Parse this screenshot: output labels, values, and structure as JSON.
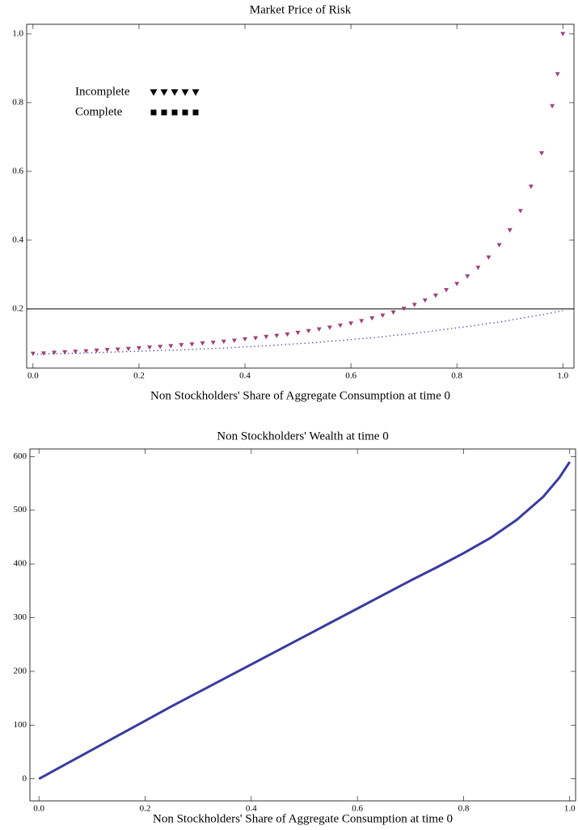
{
  "chart_data": [
    {
      "type": "line",
      "title": "Market Price of Risk",
      "x_label": "Non Stockholders' Share of Aggregate Consumption at time 0",
      "x": [
        0,
        0.02,
        0.04,
        0.06,
        0.08,
        0.1,
        0.12,
        0.14,
        0.16,
        0.18,
        0.2,
        0.22,
        0.24,
        0.26,
        0.28,
        0.3,
        0.32,
        0.34,
        0.36,
        0.38,
        0.4,
        0.42,
        0.44,
        0.46,
        0.48,
        0.5,
        0.52,
        0.54,
        0.56,
        0.58,
        0.6,
        0.62,
        0.64,
        0.66,
        0.68,
        0.7,
        0.72,
        0.74,
        0.76,
        0.78,
        0.8,
        0.82,
        0.84,
        0.86,
        0.88,
        0.9,
        0.92,
        0.94,
        0.96,
        0.98,
        0.99,
        1
      ],
      "series": [
        {
          "name": "Incomplete",
          "color": "#a0407a",
          "marker": "triangle",
          "values": [
            0.07,
            0.071,
            0.073,
            0.074,
            0.076,
            0.077,
            0.079,
            0.081,
            0.082,
            0.084,
            0.086,
            0.088,
            0.09,
            0.092,
            0.095,
            0.097,
            0.1,
            0.102,
            0.105,
            0.108,
            0.112,
            0.115,
            0.119,
            0.122,
            0.126,
            0.131,
            0.136,
            0.141,
            0.146,
            0.152,
            0.158,
            0.165,
            0.173,
            0.181,
            0.19,
            0.201,
            0.212,
            0.225,
            0.239,
            0.255,
            0.273,
            0.295,
            0.32,
            0.35,
            0.386,
            0.429,
            0.485,
            0.556,
            0.653,
            0.79,
            0.883,
            1
          ]
        },
        {
          "name": "Complete",
          "color": "#3a3aa0",
          "marker": "square",
          "style": "dotted",
          "values": [
            0.068,
            0.069,
            0.07,
            0.07,
            0.071,
            0.072,
            0.073,
            0.074,
            0.075,
            0.076,
            0.077,
            0.078,
            0.079,
            0.08,
            0.081,
            0.082,
            0.084,
            0.085,
            0.086,
            0.088,
            0.09,
            0.091,
            0.093,
            0.095,
            0.097,
            0.099,
            0.101,
            0.103,
            0.106,
            0.108,
            0.111,
            0.114,
            0.116,
            0.119,
            0.123,
            0.126,
            0.129,
            0.133,
            0.137,
            0.141,
            0.145,
            0.149,
            0.153,
            0.158,
            0.162,
            0.167,
            0.173,
            0.178,
            0.183,
            0.189,
            0.192,
            0.195
          ]
        }
      ],
      "hline": 0.2,
      "xlim": [
        -0.012,
        1.021
      ],
      "ylim": [
        0.028,
        1.028
      ],
      "xticks": [
        {
          "value": 0,
          "label": "0.0"
        },
        0.2,
        0.4,
        0.6,
        0.8,
        {
          "value": 1,
          "label": "1.0"
        }
      ],
      "yticks": [
        0.2,
        0.4,
        0.6,
        0.8,
        {
          "value": 1,
          "label": "1.0"
        }
      ]
    },
    {
      "type": "line",
      "title": "Non Stockholders' Wealth at time 0",
      "x_label": "Non Stockholders' Share of Aggregate Consumption at time 0",
      "x": [
        0,
        0.05,
        0.1,
        0.15,
        0.2,
        0.25,
        0.3,
        0.35,
        0.4,
        0.45,
        0.5,
        0.55,
        0.6,
        0.65,
        0.7,
        0.75,
        0.8,
        0.85,
        0.9,
        0.95,
        0.98,
        1
      ],
      "series": [
        {
          "color": "#3a3aa0",
          "values": [
            0,
            27,
            54,
            81,
            108,
            135,
            161,
            187,
            213,
            239,
            265,
            291,
            317,
            343,
            369,
            394,
            420,
            448,
            482,
            525,
            560,
            590
          ]
        }
      ],
      "xlim": [
        -0.017,
        1.011
      ],
      "ylim": [
        -41,
        614
      ],
      "xticks": [
        {
          "value": 0,
          "label": "0.0"
        },
        0.2,
        0.4,
        0.6,
        0.8,
        {
          "value": 1,
          "label": "1.0"
        }
      ],
      "yticks": [
        0,
        100,
        200,
        300,
        400,
        500,
        600
      ]
    }
  ]
}
